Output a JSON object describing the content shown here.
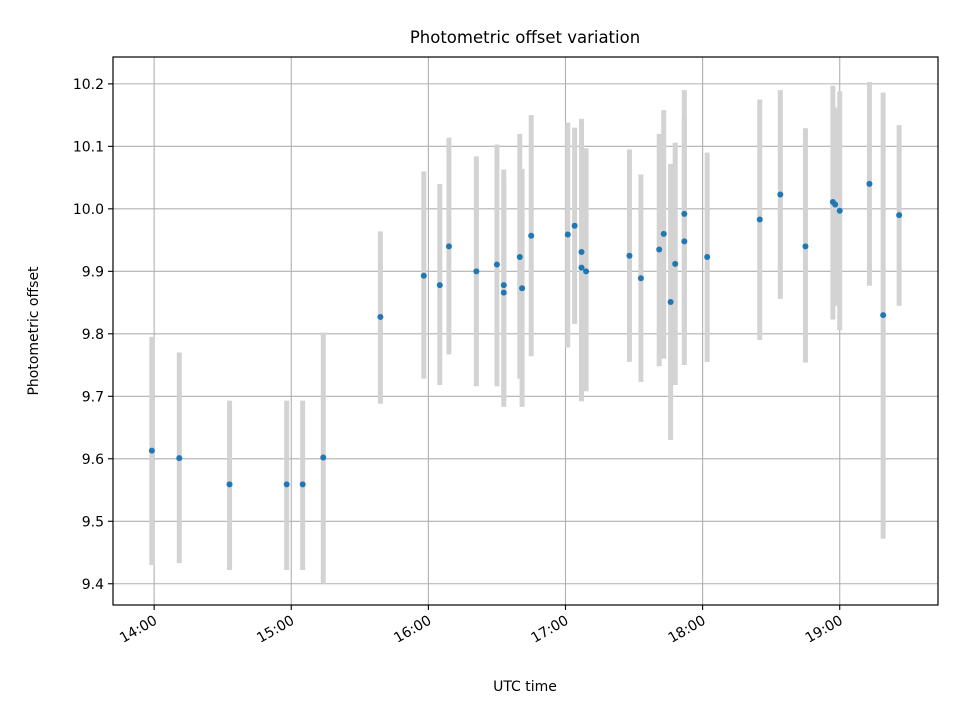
{
  "chart_data": {
    "type": "scatter",
    "title": "Photometric offset variation",
    "xlabel": "UTC time",
    "ylabel": "Photometric offset",
    "x_ticks": [
      "14:00",
      "15:00",
      "16:00",
      "17:00",
      "18:00",
      "19:00"
    ],
    "y_ticks": [
      "9.4",
      "9.5",
      "9.6",
      "9.7",
      "9.8",
      "9.9",
      "10.0",
      "10.1",
      "10.2"
    ],
    "xlim": [
      "13:42",
      "19:43"
    ],
    "ylim": [
      9.366,
      10.243
    ],
    "grid": true,
    "legend": "none",
    "colors": {
      "point": "#1f77b4",
      "errorbar": "#d3d3d3",
      "grid": "#b0b0b0"
    },
    "points": [
      {
        "time": "13:59",
        "y": 9.613,
        "ylow": 9.43,
        "yhigh": 9.795
      },
      {
        "time": "14:11",
        "y": 9.601,
        "ylow": 9.433,
        "yhigh": 9.77
      },
      {
        "time": "14:33",
        "y": 9.559,
        "ylow": 9.422,
        "yhigh": 9.693
      },
      {
        "time": "14:58",
        "y": 9.559,
        "ylow": 9.422,
        "yhigh": 9.693
      },
      {
        "time": "15:05",
        "y": 9.559,
        "ylow": 9.422,
        "yhigh": 9.693
      },
      {
        "time": "15:14",
        "y": 9.602,
        "ylow": 9.4,
        "yhigh": 9.802
      },
      {
        "time": "15:39",
        "y": 9.827,
        "ylow": 9.688,
        "yhigh": 9.964
      },
      {
        "time": "15:58",
        "y": 9.893,
        "ylow": 9.728,
        "yhigh": 10.06
      },
      {
        "time": "16:05",
        "y": 9.878,
        "ylow": 9.718,
        "yhigh": 10.04
      },
      {
        "time": "16:09",
        "y": 9.94,
        "ylow": 9.767,
        "yhigh": 10.114
      },
      {
        "time": "16:21",
        "y": 9.9,
        "ylow": 9.716,
        "yhigh": 10.084
      },
      {
        "time": "16:30",
        "y": 9.911,
        "ylow": 9.716,
        "yhigh": 10.103
      },
      {
        "time": "16:33",
        "y": 9.878,
        "ylow": 9.695,
        "yhigh": 10.063
      },
      {
        "time": "16:33",
        "y": 9.866,
        "ylow": 9.683,
        "yhigh": 10.05
      },
      {
        "time": "16:40",
        "y": 9.923,
        "ylow": 9.728,
        "yhigh": 10.12
      },
      {
        "time": "16:41",
        "y": 9.873,
        "ylow": 9.683,
        "yhigh": 10.064
      },
      {
        "time": "16:45",
        "y": 9.957,
        "ylow": 9.764,
        "yhigh": 10.15
      },
      {
        "time": "17:01",
        "y": 9.959,
        "ylow": 9.778,
        "yhigh": 10.138
      },
      {
        "time": "17:04",
        "y": 9.973,
        "ylow": 9.816,
        "yhigh": 10.13
      },
      {
        "time": "17:07",
        "y": 9.931,
        "ylow": 9.692,
        "yhigh": 10.144
      },
      {
        "time": "17:07",
        "y": 9.906,
        "ylow": 9.7,
        "yhigh": 10.11
      },
      {
        "time": "17:09",
        "y": 9.9,
        "ylow": 9.708,
        "yhigh": 10.097
      },
      {
        "time": "17:28",
        "y": 9.925,
        "ylow": 9.755,
        "yhigh": 10.095
      },
      {
        "time": "17:33",
        "y": 9.889,
        "ylow": 9.723,
        "yhigh": 10.055
      },
      {
        "time": "17:41",
        "y": 9.935,
        "ylow": 9.748,
        "yhigh": 10.12
      },
      {
        "time": "17:43",
        "y": 9.96,
        "ylow": 9.76,
        "yhigh": 10.158
      },
      {
        "time": "17:46",
        "y": 9.851,
        "ylow": 9.63,
        "yhigh": 10.072
      },
      {
        "time": "17:48",
        "y": 9.912,
        "ylow": 9.718,
        "yhigh": 10.106
      },
      {
        "time": "17:52",
        "y": 9.992,
        "ylow": 9.8,
        "yhigh": 10.19
      },
      {
        "time": "17:52",
        "y": 9.948,
        "ylow": 9.75,
        "yhigh": 10.146
      },
      {
        "time": "18:02",
        "y": 9.923,
        "ylow": 9.755,
        "yhigh": 10.09
      },
      {
        "time": "18:25",
        "y": 9.983,
        "ylow": 9.79,
        "yhigh": 10.175
      },
      {
        "time": "18:34",
        "y": 10.023,
        "ylow": 9.856,
        "yhigh": 10.19
      },
      {
        "time": "18:45",
        "y": 9.94,
        "ylow": 9.754,
        "yhigh": 10.129
      },
      {
        "time": "18:57",
        "y": 10.011,
        "ylow": 9.823,
        "yhigh": 10.197
      },
      {
        "time": "18:58",
        "y": 10.007,
        "ylow": 9.845,
        "yhigh": 10.162
      },
      {
        "time": "19:00",
        "y": 9.997,
        "ylow": 9.806,
        "yhigh": 10.188
      },
      {
        "time": "19:13",
        "y": 10.04,
        "ylow": 9.877,
        "yhigh": 10.203
      },
      {
        "time": "19:19",
        "y": 9.83,
        "ylow": 9.472,
        "yhigh": 10.186
      },
      {
        "time": "19:26",
        "y": 9.99,
        "ylow": 9.845,
        "yhigh": 10.134
      }
    ]
  }
}
